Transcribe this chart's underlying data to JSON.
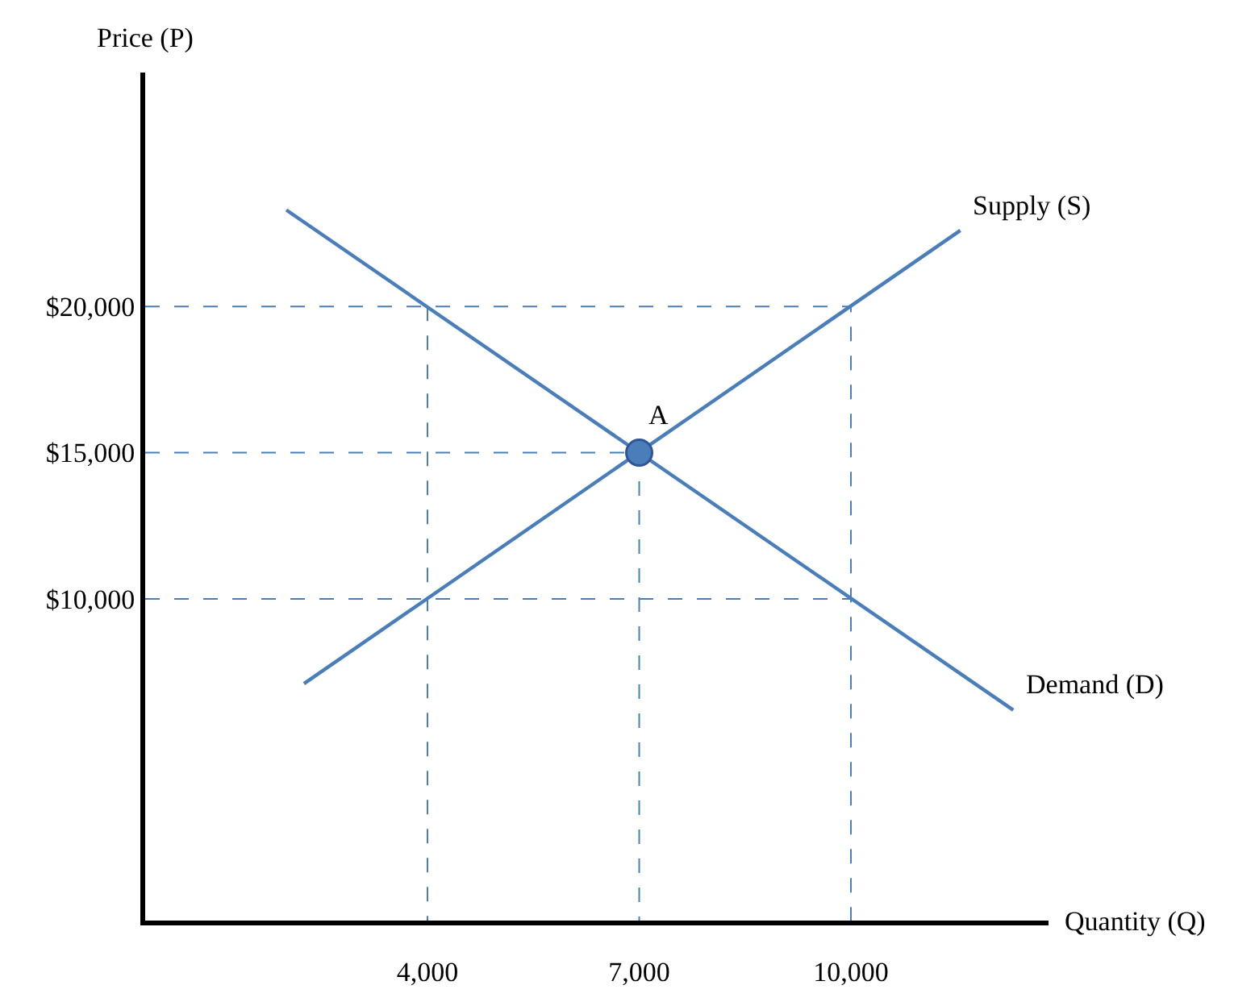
{
  "chart_data": {
    "type": "line",
    "xlabel": "Quantity (Q)",
    "ylabel": "Price (P)",
    "xlim": [
      0,
      12800
    ],
    "ylim": [
      -1000,
      28000
    ],
    "xticks": [
      {
        "value": 4000,
        "label": "4,000"
      },
      {
        "value": 7000,
        "label": "7,000"
      },
      {
        "value": 10000,
        "label": "10,000"
      }
    ],
    "yticks": [
      {
        "value": 10000,
        "label": "$10,000"
      },
      {
        "value": 15000,
        "label": "$15,000"
      },
      {
        "value": 20000,
        "label": "$20,000"
      }
    ],
    "legend": false,
    "annotations": [
      {
        "text": "A",
        "x": 7000,
        "y": 15000
      }
    ],
    "series": [
      {
        "name": "Supply (S)",
        "color": "#4a7ebb",
        "x": [
          2250,
          11550
        ],
        "values": [
          7100,
          22600
        ],
        "line_style": "solid"
      },
      {
        "name": "Demand (D)",
        "color": "#4a7ebb",
        "x": [
          2000,
          12300
        ],
        "values": [
          23300,
          6200
        ],
        "line_style": "solid"
      },
      {
        "color": "#4a7ebb",
        "x": [
          0,
          10000,
          10000
        ],
        "values": [
          20000,
          20000,
          -1000
        ],
        "line_style": "dashed"
      },
      {
        "color": "#4a7ebb",
        "x": [
          4000,
          4000
        ],
        "values": [
          20000,
          -1000
        ],
        "line_style": "dashed"
      },
      {
        "color": "#4a7ebb",
        "x": [
          0,
          7000,
          7000
        ],
        "values": [
          15000,
          15000,
          -1000
        ],
        "line_style": "dashed"
      },
      {
        "color": "#4a7ebb",
        "x": [
          0,
          10000
        ],
        "values": [
          10000,
          10000
        ],
        "line_style": "dashed"
      },
      {
        "type": "scatter",
        "color": "#4a7ebb",
        "x": [
          7000
        ],
        "values": [
          15000
        ],
        "marker": "circle"
      }
    ]
  }
}
